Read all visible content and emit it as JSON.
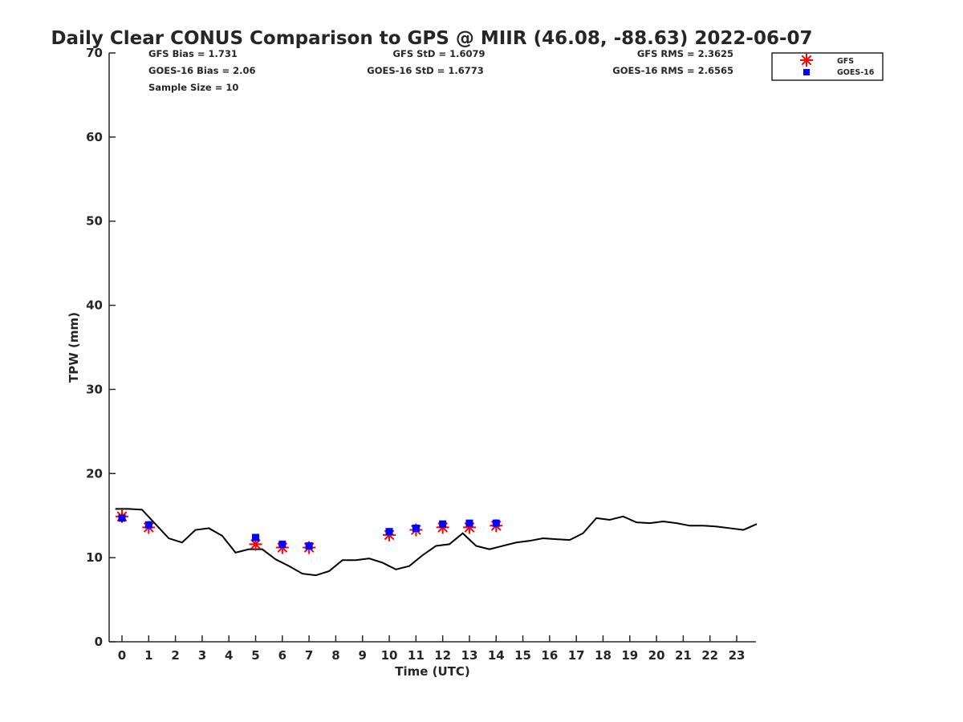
{
  "chart_data": {
    "type": "line",
    "title": "Daily Clear CONUS Comparison to GPS @ MIIR (46.08, -88.63) 2022-06-07",
    "xlabel": "Time (UTC)",
    "ylabel": "TPW (mm)",
    "xlim": [
      -0.5,
      23.75
    ],
    "ylim": [
      0,
      70
    ],
    "xticks": [
      0,
      1,
      2,
      3,
      4,
      5,
      6,
      7,
      8,
      9,
      10,
      11,
      12,
      13,
      14,
      15,
      16,
      17,
      18,
      19,
      20,
      21,
      22,
      23
    ],
    "yticks": [
      0,
      10,
      20,
      30,
      40,
      50,
      60,
      70
    ],
    "grid": false,
    "legend": {
      "placement": "top-right",
      "entries": [
        "GFS",
        "GOES-16"
      ]
    },
    "stats": {
      "gfs_bias": "GFS Bias = 1.731",
      "goes_bias": "GOES-16 Bias = 2.06",
      "sample_size": "Sample Size = 10",
      "gfs_std": "GFS StD = 1.6079",
      "goes_std": "GOES-16 StD = 1.6773",
      "gfs_rms": "GFS RMS = 2.3625",
      "goes_rms": "GOES-16 RMS = 2.6565"
    },
    "series": [
      {
        "name": "GPS",
        "style": "line",
        "color": "#000000",
        "x": [
          -0.25,
          0.25,
          0.75,
          1.25,
          1.75,
          2.25,
          2.75,
          3.25,
          3.75,
          4.25,
          4.75,
          5.25,
          5.75,
          6.25,
          6.75,
          7.25,
          7.75,
          8.25,
          8.75,
          9.25,
          9.75,
          10.25,
          10.75,
          11.25,
          11.75,
          12.25,
          12.75,
          13.25,
          13.75,
          14.25,
          14.75,
          15.25,
          15.75,
          16.25,
          16.75,
          17.25,
          17.75,
          18.25,
          18.75,
          19.25,
          19.75,
          20.25,
          20.75,
          21.25,
          21.75,
          22.25,
          22.75,
          23.25,
          23.75
        ],
        "y": [
          15.8,
          15.8,
          15.7,
          14.0,
          12.3,
          11.8,
          13.3,
          13.5,
          12.6,
          10.6,
          11.0,
          11.0,
          9.8,
          9.0,
          8.1,
          7.9,
          8.4,
          9.7,
          9.7,
          9.9,
          9.4,
          8.6,
          9.0,
          10.3,
          11.4,
          11.6,
          12.9,
          11.4,
          11.0,
          11.4,
          11.8,
          12.0,
          12.3,
          12.2,
          12.1,
          12.9,
          14.7,
          14.5,
          14.9,
          14.2,
          14.1,
          14.3,
          14.1,
          13.8,
          13.8,
          13.7,
          13.5,
          13.3,
          14.0
        ]
      },
      {
        "name": "GFS",
        "style": "asterisk",
        "color": "#ff0000",
        "x": [
          0,
          1,
          5,
          6,
          7,
          10,
          11,
          12,
          13,
          14
        ],
        "y": [
          14.9,
          13.6,
          11.6,
          11.2,
          11.2,
          12.7,
          13.3,
          13.6,
          13.6,
          13.8
        ]
      },
      {
        "name": "GOES-16",
        "style": "square",
        "color": "#0000ff",
        "x": [
          0,
          1,
          5,
          6,
          7,
          10,
          11,
          12,
          13,
          14
        ],
        "y": [
          14.7,
          13.9,
          12.4,
          11.6,
          11.4,
          13.1,
          13.5,
          14.0,
          14.1,
          14.1
        ]
      }
    ]
  }
}
